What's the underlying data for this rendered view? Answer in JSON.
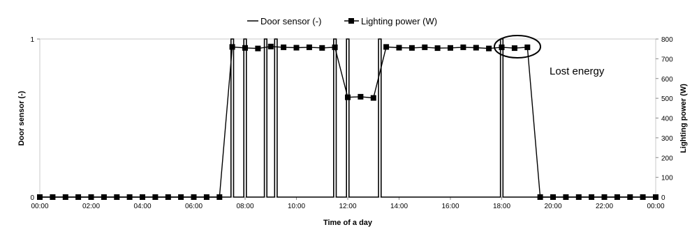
{
  "chart_data": {
    "type": "line",
    "title": "",
    "xlabel": "Time of a day",
    "ylabel_left": "Door sensor (-)",
    "ylabel_right": "Lighting power (W)",
    "x_ticks": [
      "00:00",
      "02:00",
      "04:00",
      "06:00",
      "08:00",
      "10:00",
      "12:00",
      "14:00",
      "16:00",
      "18:00",
      "20:00",
      "22:00",
      "00:00"
    ],
    "xlim_hours": [
      0,
      24
    ],
    "y_left_ticks": [
      "0",
      "1"
    ],
    "ylim_left": [
      0,
      1
    ],
    "y_right_ticks": [
      "0",
      "100",
      "200",
      "300",
      "400",
      "500",
      "600",
      "700",
      "800"
    ],
    "ylim_right": [
      0,
      800
    ],
    "legend": [
      "Door sensor (-)",
      "Lighting power (W)"
    ],
    "legend_position": "top-center",
    "annotation": "Lost energy",
    "series": [
      {
        "name": "Door sensor (-)",
        "axis": "left",
        "color": "#000000",
        "x_hours": [
          0,
          7.45,
          7.45,
          7.55,
          7.55,
          7.95,
          7.95,
          8.05,
          8.05,
          8.75,
          8.75,
          8.85,
          8.85,
          9.15,
          9.15,
          9.25,
          9.25,
          11.45,
          11.45,
          11.55,
          11.55,
          11.95,
          11.95,
          12.05,
          12.05,
          13.2,
          13.2,
          13.3,
          13.3,
          17.95,
          17.95,
          18.05,
          18.05,
          24
        ],
        "values": [
          0,
          0,
          1,
          1,
          0,
          0,
          1,
          1,
          0,
          0,
          1,
          1,
          0,
          0,
          1,
          1,
          0,
          0,
          1,
          1,
          0,
          0,
          1,
          1,
          0,
          0,
          1,
          1,
          0,
          0,
          1,
          1,
          0,
          0
        ]
      },
      {
        "name": "Lighting power (W)",
        "axis": "right",
        "color": "#000000",
        "marker": "square",
        "x_hours": [
          0,
          0.5,
          1,
          1.5,
          2,
          2.5,
          3,
          3.5,
          4,
          4.5,
          5,
          5.5,
          6,
          6.5,
          7,
          7.5,
          8,
          8.5,
          9,
          9.5,
          10,
          10.5,
          11,
          11.5,
          12,
          12.5,
          13,
          13.5,
          14,
          14.5,
          15,
          15.5,
          16,
          16.5,
          17,
          17.5,
          18,
          18.5,
          19,
          19.5,
          20,
          20.5,
          21,
          21.5,
          22,
          22.5,
          23,
          23.5,
          24
        ],
        "values": [
          0,
          0,
          0,
          0,
          0,
          0,
          0,
          0,
          0,
          0,
          0,
          0,
          0,
          0,
          0,
          760,
          755,
          752,
          762,
          758,
          756,
          758,
          755,
          758,
          505,
          508,
          502,
          760,
          756,
          755,
          758,
          754,
          755,
          758,
          756,
          752,
          758,
          754,
          758,
          0,
          0,
          0,
          0,
          0,
          0,
          0,
          0,
          0,
          0
        ]
      }
    ]
  }
}
